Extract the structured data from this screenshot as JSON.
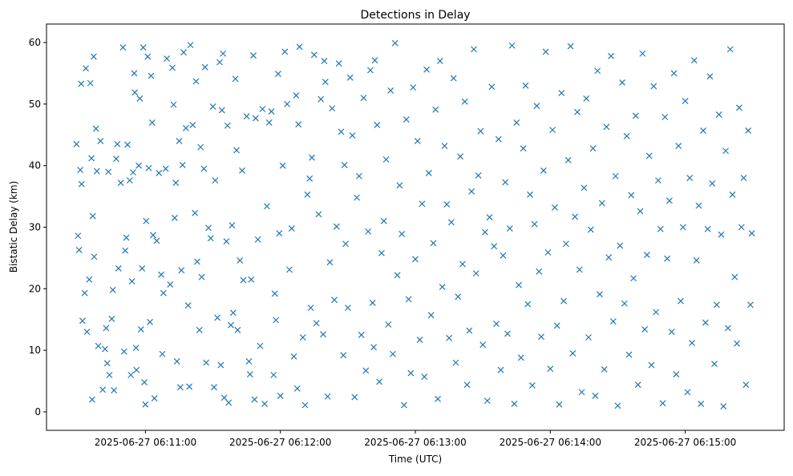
{
  "chart_data": {
    "type": "scatter",
    "title": "Detections in Delay",
    "xlabel": "Time (UTC)",
    "ylabel": "Bistatic Delay (km)",
    "x_unit": "seconds after 2025-06-27 06:10:00",
    "xlim": [
      16,
      344
    ],
    "ylim": [
      -3,
      63
    ],
    "xticks": [
      {
        "value": 60,
        "label": "2025-06-27 06:11:00"
      },
      {
        "value": 120,
        "label": "2025-06-27 06:12:00"
      },
      {
        "value": 180,
        "label": "2025-06-27 06:13:00"
      },
      {
        "value": 240,
        "label": "2025-06-27 06:14:00"
      },
      {
        "value": 300,
        "label": "2025-06-27 06:15:00"
      }
    ],
    "yticks": [
      {
        "value": 0,
        "label": "0"
      },
      {
        "value": 10,
        "label": "10"
      },
      {
        "value": 20,
        "label": "20"
      },
      {
        "value": 30,
        "label": "30"
      },
      {
        "value": 40,
        "label": "40"
      },
      {
        "value": 50,
        "label": "50"
      },
      {
        "value": 60,
        "label": "60"
      }
    ],
    "marker": "x",
    "color": "#1f77b4",
    "points": [
      [
        29.3,
        43.5
      ],
      [
        30,
        28.6
      ],
      [
        30.5,
        26.3
      ],
      [
        31,
        39.3
      ],
      [
        31.4,
        53.3
      ],
      [
        31.6,
        37
      ],
      [
        32,
        14.8
      ],
      [
        33,
        19.3
      ],
      [
        33.5,
        55.8
      ],
      [
        34,
        13
      ],
      [
        35,
        21.5
      ],
      [
        35.5,
        53.4
      ],
      [
        36,
        41.2
      ],
      [
        36.3,
        2
      ],
      [
        36.6,
        31.8
      ],
      [
        37,
        57.7
      ],
      [
        37.2,
        25.2
      ],
      [
        38,
        46
      ],
      [
        38.4,
        39.1
      ],
      [
        39,
        10.7
      ],
      [
        40,
        44
      ],
      [
        41,
        3.6
      ],
      [
        42,
        10.2
      ],
      [
        42.5,
        13.6
      ],
      [
        43,
        7.9
      ],
      [
        43.5,
        39
      ],
      [
        44,
        6
      ],
      [
        45,
        15.1
      ],
      [
        45.5,
        19.8
      ],
      [
        46,
        3.5
      ],
      [
        47,
        41.1
      ],
      [
        47.5,
        43.5
      ],
      [
        48,
        23.3
      ],
      [
        49,
        37.2
      ],
      [
        50,
        59.2
      ],
      [
        50.5,
        9.8
      ],
      [
        51,
        26.2
      ],
      [
        51.5,
        28.3
      ],
      [
        52,
        43.4
      ],
      [
        53,
        37.6
      ],
      [
        53.5,
        6
      ],
      [
        54,
        21.2
      ],
      [
        54.5,
        38.9
      ],
      [
        55,
        55
      ],
      [
        55.3,
        51.9
      ],
      [
        55.8,
        10.4
      ],
      [
        56,
        6.8
      ],
      [
        57,
        40
      ],
      [
        57.5,
        50.9
      ],
      [
        58,
        13.4
      ],
      [
        58.5,
        23.3
      ],
      [
        59,
        59.2
      ],
      [
        59.5,
        4.8
      ],
      [
        60,
        1.2
      ],
      [
        60.3,
        31
      ],
      [
        61,
        57.7
      ],
      [
        61.5,
        39.6
      ],
      [
        62,
        14.6
      ],
      [
        62.5,
        54.6
      ],
      [
        63,
        47
      ],
      [
        63.4,
        28.7
      ],
      [
        64,
        2.2
      ],
      [
        65,
        27.8
      ],
      [
        66,
        38.8
      ],
      [
        67,
        22.3
      ],
      [
        67.5,
        9.4
      ],
      [
        68,
        19.3
      ],
      [
        69,
        39.5
      ],
      [
        69.5,
        57.4
      ],
      [
        71,
        20.7
      ],
      [
        72,
        55.9
      ],
      [
        72.5,
        49.9
      ],
      [
        73,
        31.5
      ],
      [
        73.5,
        37.2
      ],
      [
        74,
        8.2
      ],
      [
        75,
        44
      ],
      [
        75.5,
        4
      ],
      [
        76,
        23
      ],
      [
        76.5,
        40.1
      ],
      [
        77,
        58.4
      ],
      [
        78,
        46.1
      ],
      [
        79,
        17.3
      ],
      [
        79.5,
        4.1
      ],
      [
        80,
        59.6
      ],
      [
        81,
        46.6
      ],
      [
        82,
        32.3
      ],
      [
        82.5,
        53.7
      ],
      [
        83,
        24.4
      ],
      [
        84,
        13.3
      ],
      [
        84.5,
        43
      ],
      [
        85,
        21.9
      ],
      [
        86,
        39.5
      ],
      [
        86.5,
        56
      ],
      [
        87,
        8
      ],
      [
        88,
        29.9
      ],
      [
        89,
        28.2
      ],
      [
        90,
        49.6
      ],
      [
        90.5,
        4
      ],
      [
        91,
        37.6
      ],
      [
        92,
        15.3
      ],
      [
        93,
        56.8
      ],
      [
        93.5,
        7.6
      ],
      [
        94,
        49
      ],
      [
        94.5,
        58.2
      ],
      [
        95,
        2.3
      ],
      [
        96,
        27.7
      ],
      [
        96.5,
        46.5
      ],
      [
        97,
        1.5
      ],
      [
        98,
        14.1
      ],
      [
        98.5,
        30.3
      ],
      [
        99,
        16.1
      ],
      [
        100,
        54.1
      ],
      [
        100.5,
        42.5
      ],
      [
        101,
        13.3
      ],
      [
        102,
        24.6
      ],
      [
        103,
        39.2
      ],
      [
        103.5,
        21.4
      ],
      [
        105,
        48
      ],
      [
        106,
        8.2
      ],
      [
        106.5,
        6.1
      ],
      [
        107,
        21.5
      ],
      [
        108,
        57.9
      ],
      [
        108.5,
        2
      ],
      [
        109,
        47.7
      ],
      [
        110,
        28
      ],
      [
        111,
        10.7
      ],
      [
        112,
        49.2
      ],
      [
        113,
        1.3
      ],
      [
        114,
        33.4
      ],
      [
        115,
        47
      ],
      [
        116,
        48.8
      ],
      [
        117,
        6
      ],
      [
        117.5,
        19.2
      ],
      [
        118,
        14.9
      ],
      [
        119,
        54.9
      ],
      [
        119.5,
        29
      ],
      [
        120,
        2.6
      ],
      [
        121,
        40
      ],
      [
        122,
        58.5
      ],
      [
        123,
        50
      ],
      [
        124,
        23.1
      ],
      [
        125,
        29.8
      ],
      [
        126,
        9
      ],
      [
        127,
        51.4
      ],
      [
        127.5,
        3.8
      ],
      [
        128,
        46.7
      ],
      [
        128.5,
        59.3
      ],
      [
        130,
        12.1
      ],
      [
        131,
        1.1
      ],
      [
        132,
        35.3
      ],
      [
        133,
        37.9
      ],
      [
        133.5,
        16.9
      ],
      [
        134,
        41.3
      ],
      [
        135,
        58
      ],
      [
        136,
        14.4
      ],
      [
        137,
        32.1
      ],
      [
        138,
        50.8
      ],
      [
        139,
        12.6
      ],
      [
        139.5,
        57
      ],
      [
        140,
        53.6
      ],
      [
        141,
        2.5
      ],
      [
        142,
        24.3
      ],
      [
        143,
        49.3
      ],
      [
        144,
        18.2
      ],
      [
        145,
        30.1
      ],
      [
        146,
        56.6
      ],
      [
        147,
        45.5
      ],
      [
        148,
        9.2
      ],
      [
        148.5,
        40.1
      ],
      [
        149,
        27.3
      ],
      [
        150,
        16.9
      ],
      [
        151,
        54.3
      ],
      [
        152,
        44.9
      ],
      [
        153,
        2.4
      ],
      [
        154,
        34.8
      ],
      [
        155,
        38.3
      ],
      [
        156,
        12.5
      ],
      [
        157,
        51
      ],
      [
        158,
        6.7
      ],
      [
        159,
        29.3
      ],
      [
        160,
        55.5
      ],
      [
        161,
        17.7
      ],
      [
        161.5,
        10.5
      ],
      [
        162,
        57.1
      ],
      [
        163,
        46.6
      ],
      [
        164,
        4.9
      ],
      [
        165,
        25.8
      ],
      [
        166,
        31
      ],
      [
        167,
        41
      ],
      [
        168,
        14.2
      ],
      [
        169,
        52.2
      ],
      [
        170,
        9.4
      ],
      [
        171,
        59.9
      ],
      [
        172,
        22.2
      ],
      [
        173,
        36.8
      ],
      [
        174,
        28.9
      ],
      [
        175,
        1.1
      ],
      [
        176,
        47.5
      ],
      [
        177,
        18.3
      ],
      [
        178,
        6.3
      ],
      [
        179,
        52.7
      ],
      [
        180,
        24.8
      ],
      [
        181,
        44
      ],
      [
        182,
        11.7
      ],
      [
        183,
        33.8
      ],
      [
        184,
        5.7
      ],
      [
        185,
        55.6
      ],
      [
        186,
        38.8
      ],
      [
        187,
        15.7
      ],
      [
        188,
        27.4
      ],
      [
        189,
        49.1
      ],
      [
        190,
        2.1
      ],
      [
        191,
        57
      ],
      [
        192,
        20.3
      ],
      [
        193,
        43.2
      ],
      [
        194,
        33.7
      ],
      [
        195,
        12
      ],
      [
        196,
        30.8
      ],
      [
        197,
        54.2
      ],
      [
        198,
        8
      ],
      [
        199,
        18.7
      ],
      [
        200,
        41.5
      ],
      [
        201,
        24
      ],
      [
        202,
        50.4
      ],
      [
        203,
        4.4
      ],
      [
        204,
        13.2
      ],
      [
        205,
        35.8
      ],
      [
        206,
        58.9
      ],
      [
        207,
        22.5
      ],
      [
        208,
        38.4
      ],
      [
        209,
        45.6
      ],
      [
        210,
        10.9
      ],
      [
        211,
        29.2
      ],
      [
        212,
        1.8
      ],
      [
        213,
        31.6
      ],
      [
        214,
        52.8
      ],
      [
        215,
        26.9
      ],
      [
        216,
        14.3
      ],
      [
        217,
        44.3
      ],
      [
        218,
        6.8
      ],
      [
        219,
        25.4
      ],
      [
        220,
        37.3
      ],
      [
        221,
        12.7
      ],
      [
        222,
        29.8
      ],
      [
        223,
        59.5
      ],
      [
        224,
        1.3
      ],
      [
        225,
        47
      ],
      [
        226,
        20.6
      ],
      [
        227,
        8.8
      ],
      [
        228,
        42.8
      ],
      [
        229,
        53
      ],
      [
        230,
        17.5
      ],
      [
        231,
        35.3
      ],
      [
        232,
        4.3
      ],
      [
        233,
        30.5
      ],
      [
        234,
        49.7
      ],
      [
        235,
        22.8
      ],
      [
        236,
        12.2
      ],
      [
        237,
        39.2
      ],
      [
        238,
        58.5
      ],
      [
        239,
        25.9
      ],
      [
        240,
        7
      ],
      [
        241,
        45.8
      ],
      [
        242,
        33.2
      ],
      [
        243,
        14
      ],
      [
        244,
        1.2
      ],
      [
        245,
        51.8
      ],
      [
        246,
        18
      ],
      [
        247,
        27.3
      ],
      [
        248,
        40.9
      ],
      [
        249,
        59.4
      ],
      [
        250,
        9.5
      ],
      [
        251,
        31.7
      ],
      [
        252,
        48.7
      ],
      [
        253,
        23.1
      ],
      [
        254,
        3.2
      ],
      [
        255,
        36.4
      ],
      [
        256,
        50.9
      ],
      [
        257,
        12.1
      ],
      [
        258,
        29.6
      ],
      [
        259,
        42.8
      ],
      [
        260,
        2.6
      ],
      [
        261,
        55.4
      ],
      [
        262,
        19.1
      ],
      [
        263,
        33.9
      ],
      [
        264,
        6.9
      ],
      [
        265,
        46.3
      ],
      [
        266,
        25.1
      ],
      [
        267,
        57.8
      ],
      [
        268,
        14.7
      ],
      [
        269,
        38.3
      ],
      [
        270,
        1
      ],
      [
        271,
        27
      ],
      [
        272,
        53.5
      ],
      [
        273,
        17.6
      ],
      [
        274,
        44.8
      ],
      [
        275,
        9.3
      ],
      [
        276,
        35.2
      ],
      [
        277,
        21.7
      ],
      [
        278,
        48.1
      ],
      [
        279,
        4.4
      ],
      [
        280,
        32.6
      ],
      [
        281,
        58.2
      ],
      [
        282,
        13.4
      ],
      [
        283,
        25.5
      ],
      [
        284,
        41.6
      ],
      [
        285,
        7.6
      ],
      [
        286,
        52.9
      ],
      [
        287,
        16.2
      ],
      [
        288,
        37.6
      ],
      [
        289,
        29.7
      ],
      [
        290,
        1.4
      ],
      [
        291,
        47.9
      ],
      [
        292,
        24.9
      ],
      [
        293,
        34.3
      ],
      [
        294,
        13
      ],
      [
        295,
        55
      ],
      [
        296,
        6.1
      ],
      [
        297,
        43.2
      ],
      [
        298,
        18
      ],
      [
        299,
        30
      ],
      [
        300,
        50.5
      ],
      [
        301,
        3.2
      ],
      [
        302,
        38
      ],
      [
        303,
        11.2
      ],
      [
        304,
        57.1
      ],
      [
        305,
        24.6
      ],
      [
        306,
        33.5
      ],
      [
        307,
        1.3
      ],
      [
        308,
        45.7
      ],
      [
        309,
        14.5
      ],
      [
        310,
        29.7
      ],
      [
        311,
        54.5
      ],
      [
        312,
        37.1
      ],
      [
        313,
        7.8
      ],
      [
        314,
        17.4
      ],
      [
        315,
        48.3
      ],
      [
        316,
        28.8
      ],
      [
        317,
        0.9
      ],
      [
        318,
        42.4
      ],
      [
        319,
        13.6
      ],
      [
        320,
        58.9
      ],
      [
        321,
        35.3
      ],
      [
        322,
        21.9
      ],
      [
        323,
        11.1
      ],
      [
        324,
        49.4
      ],
      [
        325,
        30
      ],
      [
        326,
        38
      ],
      [
        327,
        4.4
      ],
      [
        328,
        45.7
      ],
      [
        329,
        17.4
      ],
      [
        329.6,
        29
      ]
    ]
  }
}
